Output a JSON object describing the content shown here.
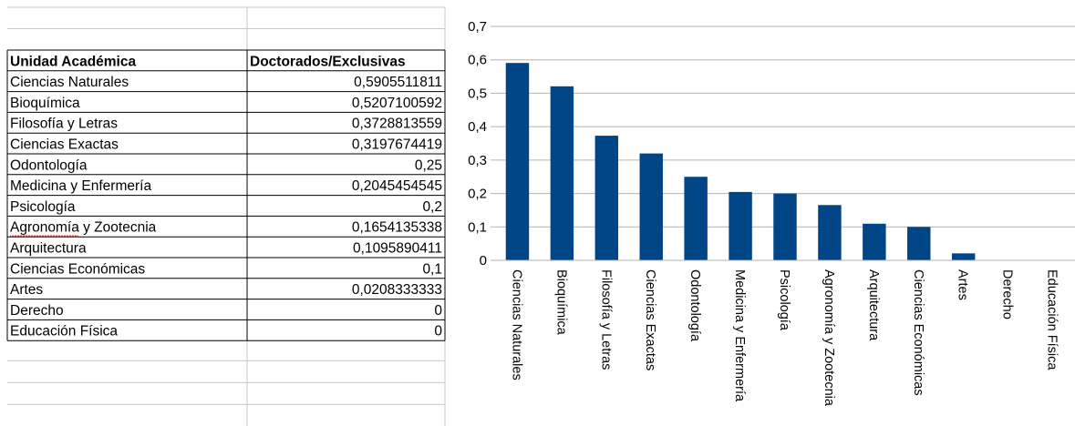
{
  "table": {
    "headers": [
      "Unidad Académica",
      "Doctorados/Exclusivas"
    ],
    "rows": [
      [
        "Ciencias Naturales",
        "0,5905511811"
      ],
      [
        "Bioquímica",
        "0,5207100592"
      ],
      [
        "Filosofía y Letras",
        "0,3728813559"
      ],
      [
        "Ciencias Exactas",
        "0,3197674419"
      ],
      [
        "Odontología",
        "0,25"
      ],
      [
        "Medicina y Enfermería",
        "0,2045454545"
      ],
      [
        "Psicología",
        "0,2"
      ],
      [
        "Agronomía y Zootecnia",
        "0,1654135338"
      ],
      [
        "Arquitectura",
        "0,1095890411"
      ],
      [
        "Ciencias Económicas",
        "0,1"
      ],
      [
        "Artes",
        "0,0208333333"
      ],
      [
        "Derecho",
        "0"
      ],
      [
        "Educación Física",
        "0"
      ]
    ]
  },
  "chart_data": {
    "type": "bar",
    "title": "",
    "xlabel": "",
    "ylabel": "",
    "categories": [
      "Ciencias Naturales",
      "Bioquímica",
      "Filosofía y Letras",
      "Ciencias Exactas",
      "Odontología",
      "Medicina y Enfermería",
      "Psicología",
      "Agronomía y Zootecnia",
      "Arquitectura",
      "Ciencias Económicas",
      "Artes",
      "Derecho",
      "Educación Física"
    ],
    "values": [
      0.5905511811,
      0.5207100592,
      0.3728813559,
      0.3197674419,
      0.25,
      0.2045454545,
      0.2,
      0.1654135338,
      0.1095890411,
      0.1,
      0.0208333333,
      0,
      0
    ],
    "ylim": [
      0,
      0.7
    ],
    "yticks": [
      "0",
      "0,1",
      "0,2",
      "0,3",
      "0,4",
      "0,5",
      "0,6",
      "0,7"
    ],
    "grid": true,
    "legend": "none",
    "bar_color": "#004586"
  }
}
